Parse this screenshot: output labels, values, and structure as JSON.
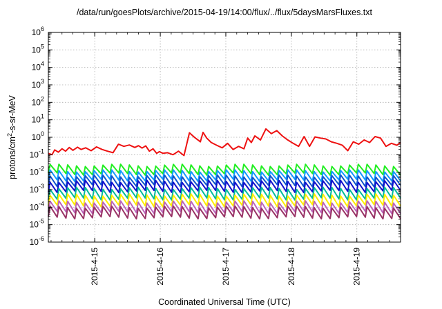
{
  "chart_data": {
    "type": "line",
    "title": "/data/run/goesPlots/archive/2015-04-19/14:00/flux/../flux/5daysMarsFluxes.txt",
    "xlabel": "Coordinated Universal Time (UTC)",
    "ylabel_parts": [
      "protons/cm",
      "2",
      "-s-sr-MeV"
    ],
    "yscale": "log",
    "ylim": [
      1e-06,
      1000000.0
    ],
    "y_ticks": [
      {
        "base": "10",
        "exp": "-6"
      },
      {
        "base": "10",
        "exp": "-5"
      },
      {
        "base": "10",
        "exp": "-4"
      },
      {
        "base": "10",
        "exp": "-3"
      },
      {
        "base": "10",
        "exp": "-2"
      },
      {
        "base": "10",
        "exp": "-1"
      },
      {
        "base": "10",
        "exp": "0"
      },
      {
        "base": "10",
        "exp": "1"
      },
      {
        "base": "10",
        "exp": "2"
      },
      {
        "base": "10",
        "exp": "3"
      },
      {
        "base": "10",
        "exp": "4"
      },
      {
        "base": "10",
        "exp": "5"
      },
      {
        "base": "10",
        "exp": "6"
      }
    ],
    "xlim": [
      "2015-04-14 07:00",
      "2015-04-19 16:00"
    ],
    "x_ticks": [
      "2015-4-15",
      "2015-4-16",
      "2015-4-17",
      "2015-4-18",
      "2015-4-19"
    ],
    "grid": true,
    "series": [
      {
        "color": "#ee1111",
        "x": [
          "2015-04-14 07:00",
          "2015-04-14 08:20",
          "2015-04-14 09:20",
          "2015-04-14 10:40",
          "2015-04-14 12:00",
          "2015-04-14 13:20",
          "2015-04-14 14:40",
          "2015-04-14 16:00",
          "2015-04-14 17:40",
          "2015-04-14 19:00",
          "2015-04-14 20:40",
          "2015-04-14 22:40",
          "2015-04-15 00:40",
          "2015-04-15 02:40",
          "2015-04-15 04:40",
          "2015-04-15 06:40",
          "2015-04-15 08:40",
          "2015-04-15 10:40",
          "2015-04-15 12:40",
          "2015-04-15 14:40",
          "2015-04-15 16:00",
          "2015-04-15 17:20",
          "2015-04-15 18:40",
          "2015-04-15 20:00",
          "2015-04-15 21:20",
          "2015-04-15 22:40",
          "2015-04-15 23:40",
          "2015-04-16 01:00",
          "2015-04-16 02:40",
          "2015-04-16 04:40",
          "2015-04-16 06:40",
          "2015-04-16 08:40",
          "2015-04-16 10:40",
          "2015-04-16 12:40",
          "2015-04-16 14:40",
          "2015-04-16 15:40",
          "2015-04-16 17:00",
          "2015-04-16 18:40",
          "2015-04-16 20:40",
          "2015-04-16 22:40",
          "2015-04-17 00:40",
          "2015-04-17 02:40",
          "2015-04-17 04:40",
          "2015-04-17 06:40",
          "2015-04-17 08:00",
          "2015-04-17 09:20",
          "2015-04-17 10:40",
          "2015-04-17 12:40",
          "2015-04-17 14:40",
          "2015-04-17 16:40",
          "2015-04-17 18:40",
          "2015-04-17 20:40",
          "2015-04-17 22:40",
          "2015-04-18 00:40",
          "2015-04-18 02:40",
          "2015-04-18 04:40",
          "2015-04-18 06:40",
          "2015-04-18 08:40",
          "2015-04-18 10:40",
          "2015-04-18 12:40",
          "2015-04-18 14:40",
          "2015-04-18 16:40",
          "2015-04-18 18:40",
          "2015-04-18 20:40",
          "2015-04-18 22:40",
          "2015-04-19 00:40",
          "2015-04-19 02:40",
          "2015-04-19 04:40",
          "2015-04-19 06:40",
          "2015-04-19 08:40",
          "2015-04-19 10:40",
          "2015-04-19 12:40",
          "2015-04-19 14:40",
          "2015-04-19 16:00"
        ],
        "y": [
          0.12,
          0.1,
          0.19,
          0.14,
          0.22,
          0.16,
          0.26,
          0.18,
          0.27,
          0.2,
          0.25,
          0.17,
          0.28,
          0.2,
          0.16,
          0.13,
          0.4,
          0.3,
          0.36,
          0.26,
          0.33,
          0.24,
          0.32,
          0.16,
          0.22,
          0.12,
          0.15,
          0.12,
          0.13,
          0.1,
          0.16,
          0.09,
          1.8,
          0.95,
          0.55,
          1.9,
          0.9,
          0.5,
          0.35,
          0.25,
          0.45,
          0.2,
          0.3,
          0.22,
          0.9,
          0.5,
          1.2,
          0.7,
          3.0,
          1.6,
          2.4,
          1.2,
          0.7,
          0.45,
          0.3,
          1.1,
          0.3,
          1.05,
          0.9,
          0.8,
          0.55,
          0.45,
          0.35,
          0.17,
          0.55,
          0.4,
          0.7,
          0.5,
          1.1,
          0.9,
          0.3,
          0.45,
          0.35,
          0.5
        ]
      },
      {
        "color": "#22ee22",
        "peak": 0.025,
        "trough": 0.008,
        "teeth": 40
      },
      {
        "color": "#1199ff",
        "peak": 0.012,
        "trough": 0.0035,
        "teeth": 40
      },
      {
        "color": "#1155cc",
        "peak": 0.006,
        "trough": 0.0017,
        "teeth": 40
      },
      {
        "color": "#1111cc",
        "peak": 0.003,
        "trough": 0.0008,
        "teeth": 40
      },
      {
        "color": "#00bb99",
        "peak": 0.0012,
        "trough": 0.0003,
        "teeth": 40
      },
      {
        "color": "#ffee00",
        "peak": 0.0005,
        "trough": 0.00012,
        "teeth": 40
      },
      {
        "color": "#bb66bb",
        "peak": 0.0002,
        "trough": 5e-05,
        "teeth": 40
      },
      {
        "color": "#993366",
        "peak": 0.0001,
        "trough": 2.5e-05,
        "teeth": 40
      }
    ]
  }
}
